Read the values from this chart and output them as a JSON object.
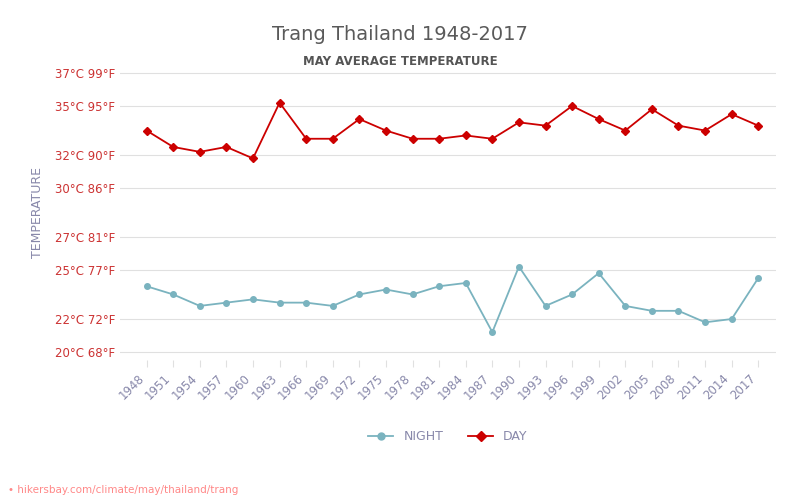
{
  "title": "Trang Thailand 1948-2017",
  "subtitle": "MAY AVERAGE TEMPERATURE",
  "ylabel": "TEMPERATURE",
  "footer": "hikersbay.com/climate/may/thailand/trang",
  "years": [
    1948,
    1951,
    1954,
    1957,
    1960,
    1963,
    1966,
    1969,
    1972,
    1975,
    1978,
    1981,
    1984,
    1987,
    1990,
    1993,
    1996,
    1999,
    2002,
    2005,
    2008,
    2011,
    2014,
    2017
  ],
  "day_temps": [
    33.5,
    32.5,
    32.2,
    32.5,
    31.8,
    35.2,
    33.0,
    33.0,
    34.2,
    33.5,
    33.0,
    33.0,
    33.2,
    33.0,
    34.0,
    33.8,
    35.0,
    34.2,
    33.5,
    34.8,
    33.8,
    33.5,
    34.5,
    33.8
  ],
  "night_temps": [
    24.0,
    23.5,
    22.8,
    23.0,
    23.2,
    23.0,
    23.0,
    22.8,
    23.5,
    23.8,
    23.5,
    24.0,
    24.2,
    21.2,
    25.2,
    22.8,
    23.5,
    24.8,
    22.8,
    22.5,
    22.5,
    21.8,
    22.0,
    24.5
  ],
  "day_color": "#cc0000",
  "night_color": "#7ab3bf",
  "ylim_min": 19.5,
  "ylim_max": 37.5,
  "yticks_c": [
    20,
    22,
    25,
    27,
    30,
    32,
    35,
    37
  ],
  "yticks_f": [
    68,
    72,
    77,
    81,
    86,
    90,
    95,
    99
  ],
  "title_color": "#5a5a5a",
  "subtitle_color": "#555555",
  "axis_label_color": "#8888aa",
  "tick_label_color": "#cc3333",
  "grid_color": "#e0e0e0",
  "bg_color": "#ffffff",
  "footer_color": "#ff8888"
}
